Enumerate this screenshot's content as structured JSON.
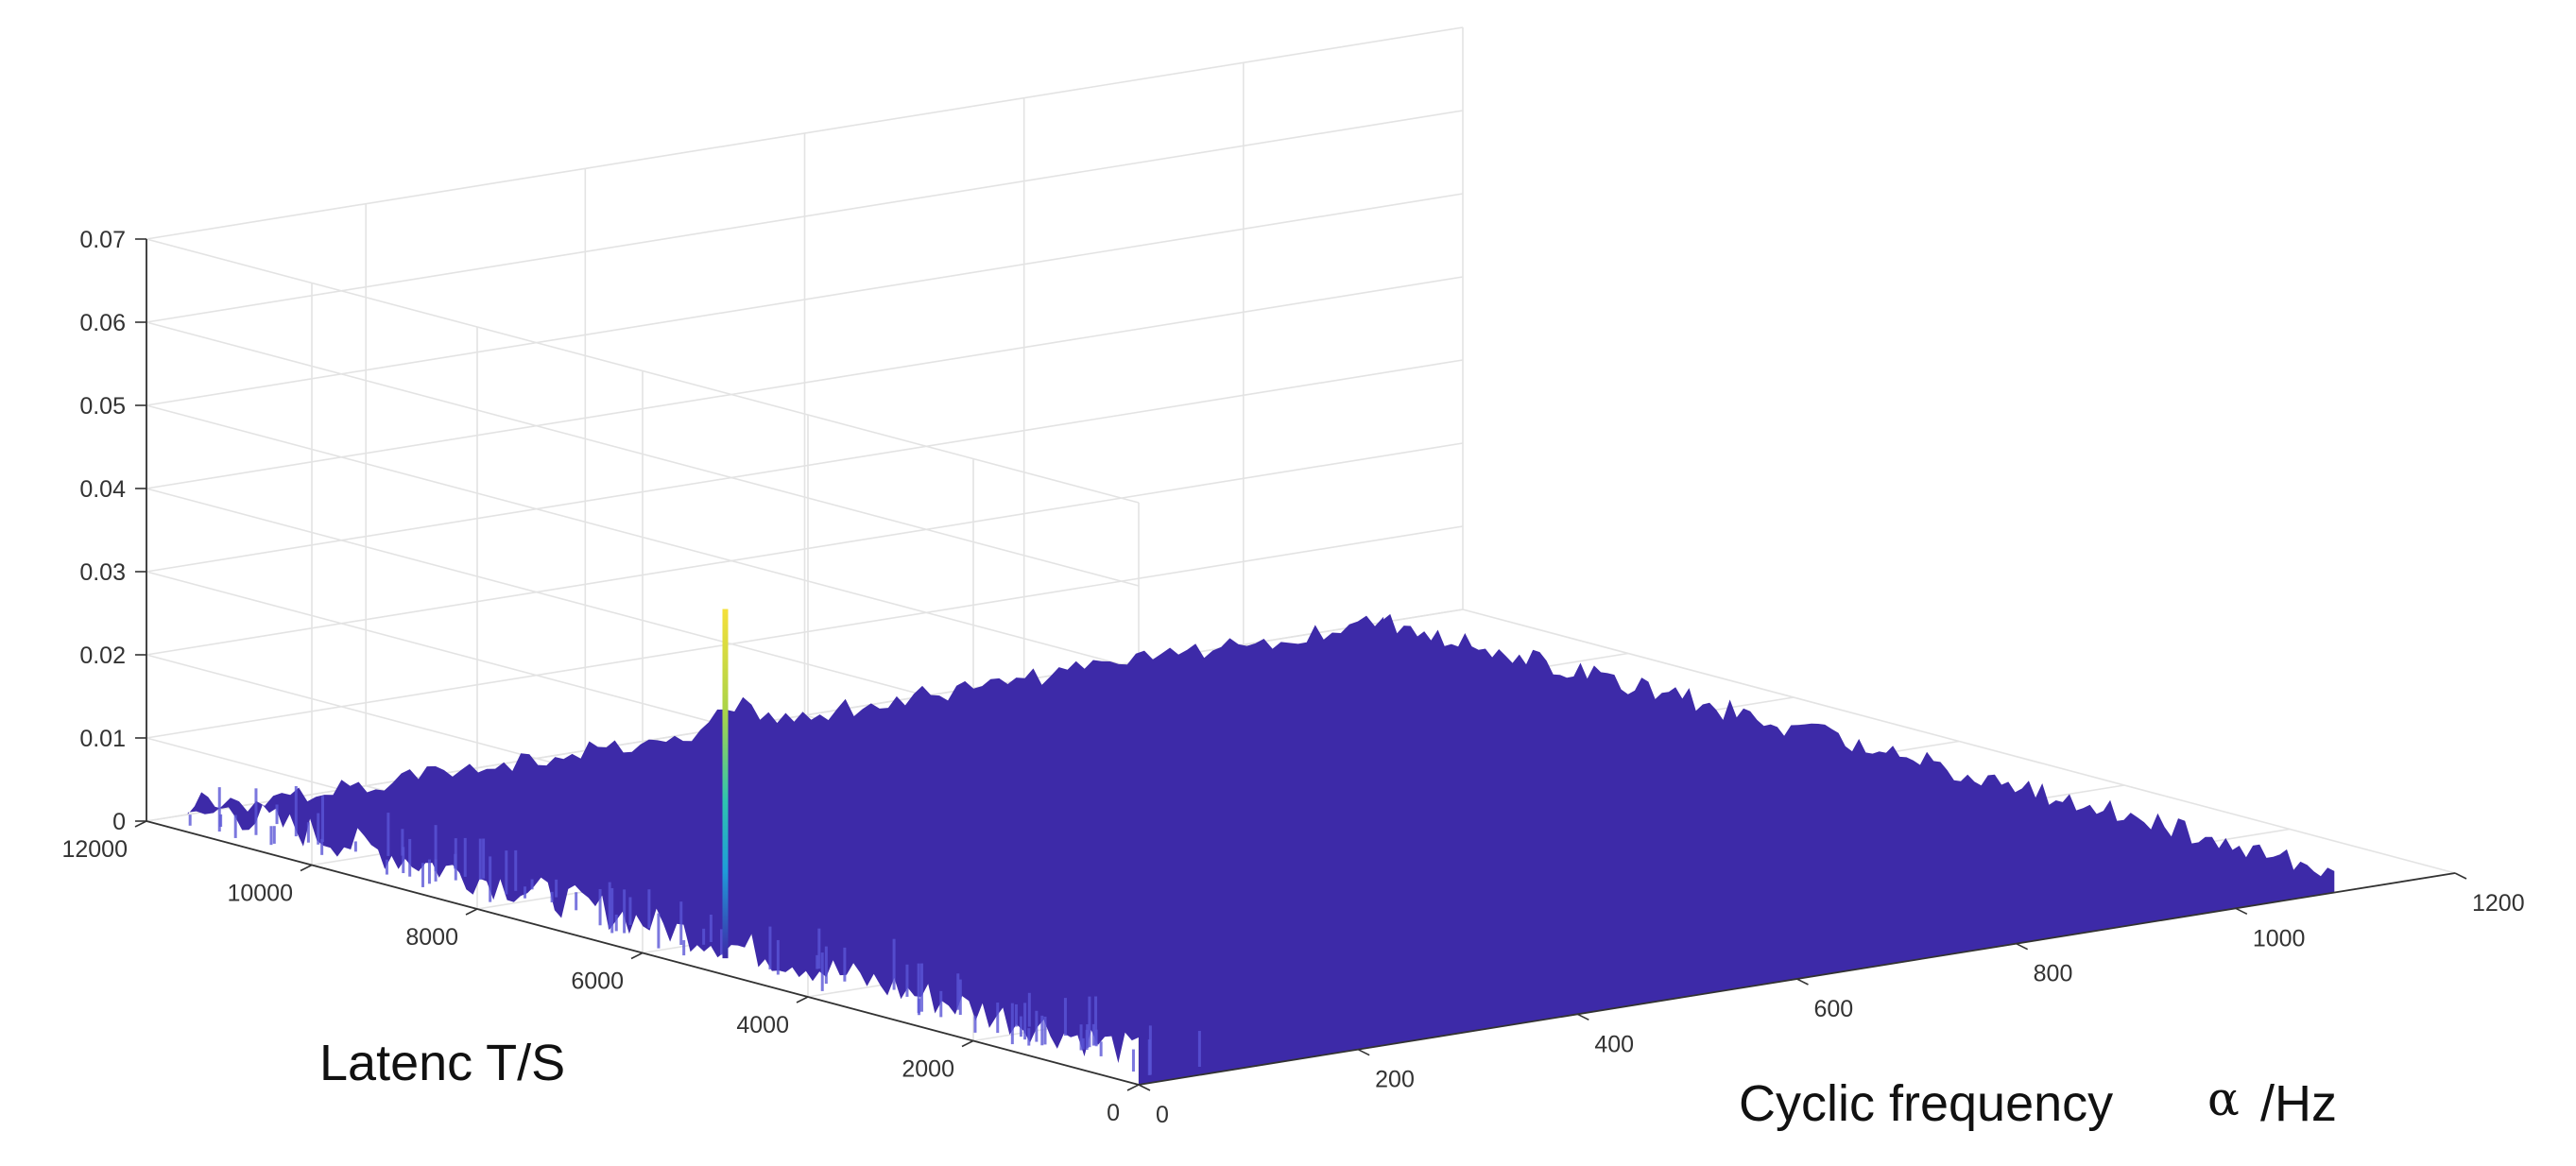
{
  "chart_data": {
    "type": "surface",
    "title": "",
    "xlabel": "Cyclic frequency",
    "xlabel_symbol": "α",
    "xlabel_unit": "/Hz",
    "ylabel": "Latenc T/S",
    "zlabel": "",
    "xlim": [
      0,
      1200
    ],
    "ylim": [
      0,
      12000
    ],
    "zlim": [
      0,
      0.07
    ],
    "xticks": [
      "0",
      "200",
      "400",
      "600",
      "800",
      "1000",
      "1200"
    ],
    "yticks": [
      "0",
      "2000",
      "4000",
      "6000",
      "8000",
      "10000",
      "12000"
    ],
    "zticks": [
      "0",
      "0.01",
      "0.02",
      "0.03",
      "0.04",
      "0.05",
      "0.06",
      "0.07"
    ],
    "xtick_values": [
      0,
      200,
      400,
      600,
      800,
      1000,
      1200
    ],
    "ytick_values": [
      0,
      2000,
      4000,
      6000,
      8000,
      10000,
      12000
    ],
    "ztick_values": [
      0,
      0.01,
      0.02,
      0.03,
      0.04,
      0.05,
      0.06,
      0.07
    ],
    "grid": true,
    "colormap": "parula",
    "surface_color": "#3d2aa8",
    "baseline_level": 0.002,
    "peaks": [
      {
        "x": 0,
        "y": 5000,
        "z": 0.044
      }
    ],
    "data_extent": {
      "x": [
        0,
        1090
      ],
      "y": [
        0,
        11500
      ]
    }
  }
}
